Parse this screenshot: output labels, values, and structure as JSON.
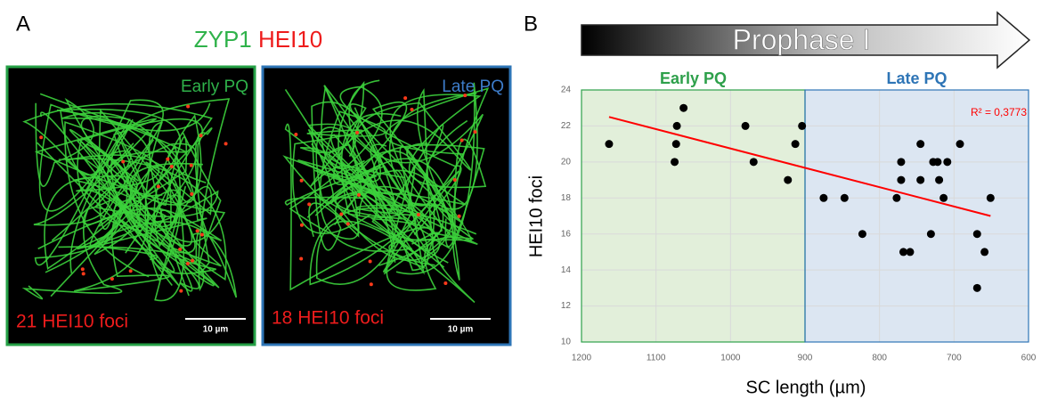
{
  "panel_a": {
    "label": "A",
    "title_parts": [
      "ZYP1",
      "HEI10"
    ],
    "images": [
      {
        "stage": "Early PQ",
        "foci": "21 HEI10 foci",
        "scale": "10 µm"
      },
      {
        "stage": "Late PQ",
        "foci": "18 HEI10 foci",
        "scale": "10 µm"
      }
    ]
  },
  "chart_data": {
    "type": "scatter",
    "panel_label": "B",
    "banner": "Prophase I",
    "x_label": "SC length (µm)",
    "y_label": "HEI10 foci",
    "x": [
      1163,
      1073,
      1063,
      1072,
      1075,
      980,
      969,
      923,
      913,
      904,
      875,
      847,
      823,
      777,
      771,
      771,
      768,
      759,
      745,
      745,
      731,
      728,
      722,
      720,
      714,
      709,
      692,
      669,
      669,
      659,
      651
    ],
    "y": [
      21,
      21,
      23,
      22,
      20,
      22,
      20,
      19,
      21,
      22,
      18,
      18,
      16,
      18,
      20,
      19,
      15,
      15,
      21,
      19,
      16,
      20,
      20,
      19,
      18,
      20,
      21,
      16,
      13,
      15,
      18
    ],
    "color": "#000000",
    "xlim": [
      1200,
      600
    ],
    "ylim": [
      10,
      24
    ],
    "xticks": [
      1200,
      1100,
      1000,
      900,
      800,
      700,
      600
    ],
    "yticks": [
      10,
      12,
      14,
      16,
      18,
      20,
      22,
      24
    ],
    "grid": true,
    "regions": [
      {
        "name": "Early PQ",
        "from": 1200,
        "to": 900,
        "color": "#e2efda",
        "label_color": "#2ea04b"
      },
      {
        "name": "Late PQ",
        "from": 900,
        "to": 600,
        "color": "#dce6f2",
        "label_color": "#2e75b6"
      }
    ],
    "trendline": {
      "x": [
        1163,
        651
      ],
      "y": [
        22.5,
        17
      ],
      "color": "#ff0000",
      "label": "R² = 0,3773"
    }
  }
}
